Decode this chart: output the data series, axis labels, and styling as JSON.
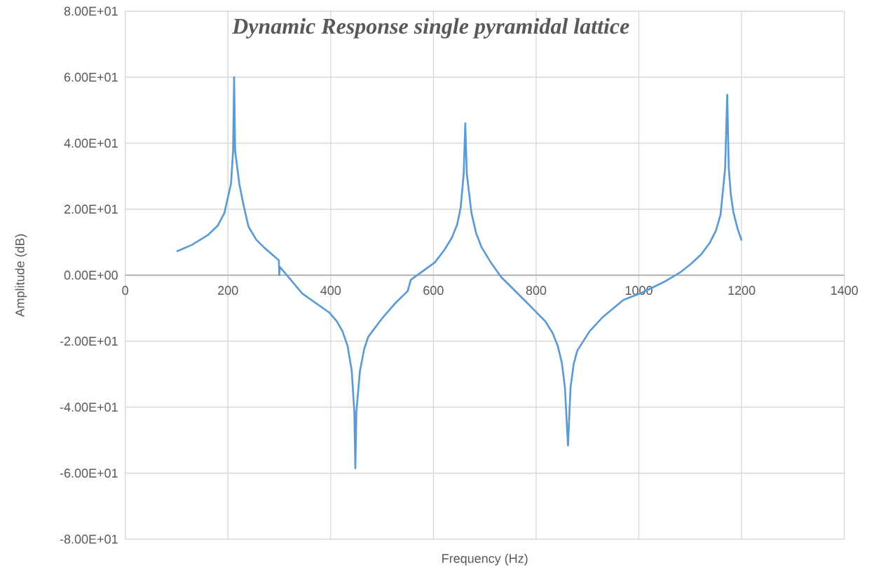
{
  "chart_data": {
    "type": "line",
    "title": "Dynamic Response single pyramidal lattice",
    "xlabel": "Frequency (Hz)",
    "ylabel": "Amplitude (dB)",
    "x": [
      100,
      130,
      162,
      180,
      193,
      206,
      210,
      212,
      214,
      222,
      230,
      240,
      255,
      271,
      299,
      300,
      301,
      345,
      397,
      412,
      423,
      433,
      441,
      446,
      448,
      450,
      457,
      465,
      473,
      501,
      525,
      550,
      556,
      603,
      622,
      636,
      646,
      653,
      659,
      662,
      665,
      674,
      683,
      694,
      712,
      732,
      780,
      818,
      832,
      842,
      850,
      856,
      862,
      867,
      873,
      880,
      904,
      929,
      970,
      1006,
      1052,
      1080,
      1102,
      1122,
      1138,
      1150,
      1159,
      1168,
      1172,
      1175,
      1179,
      1184,
      1192,
      1200
    ],
    "values": [
      7.2,
      9.2,
      12.3,
      15,
      18.8,
      27.8,
      37.6,
      60,
      37.6,
      27.8,
      21.5,
      14.7,
      10.8,
      8.3,
      4.5,
      0,
      2.5,
      -5.6,
      -11.3,
      -14,
      -17,
      -21.5,
      -29,
      -41.4,
      -58.5,
      -41.4,
      -29,
      -22.5,
      -18.7,
      -12.9,
      -8.6,
      -4.8,
      -1.4,
      3.9,
      7.8,
      11.4,
      15.2,
      20.4,
      30.8,
      46,
      30.8,
      18.9,
      12.8,
      8.4,
      3.8,
      -0.6,
      -8,
      -14,
      -17.5,
      -21.4,
      -26.5,
      -34,
      -51.6,
      -34,
      -27,
      -22.9,
      -17,
      -12.8,
      -7.5,
      -5.3,
      -1.8,
      0.8,
      3.5,
      6.4,
      9.8,
      13.5,
      18.3,
      32.5,
      54.7,
      32.5,
      24.5,
      19.1,
      14.2,
      10.5
    ],
    "color": "#5b9bd5",
    "line_style": "solid",
    "grid": true,
    "xlim": [
      0,
      1400
    ],
    "xticks": [
      0,
      200,
      400,
      600,
      800,
      1000,
      1200,
      1400
    ],
    "ylim": [
      -80,
      80
    ],
    "yticks": [
      {
        "value": -80,
        "label": "-8.00E+01"
      },
      {
        "value": -60,
        "label": "-6.00E+01"
      },
      {
        "value": -40,
        "label": "-4.00E+01"
      },
      {
        "value": -20,
        "label": "-2.00E+01"
      },
      {
        "value": 0,
        "label": "0.00E+00"
      },
      {
        "value": 20,
        "label": "2.00E+01"
      },
      {
        "value": 40,
        "label": "4.00E+01"
      },
      {
        "value": 60,
        "label": "6.00E+01"
      },
      {
        "value": 80,
        "label": "8.00E+01"
      }
    ]
  }
}
